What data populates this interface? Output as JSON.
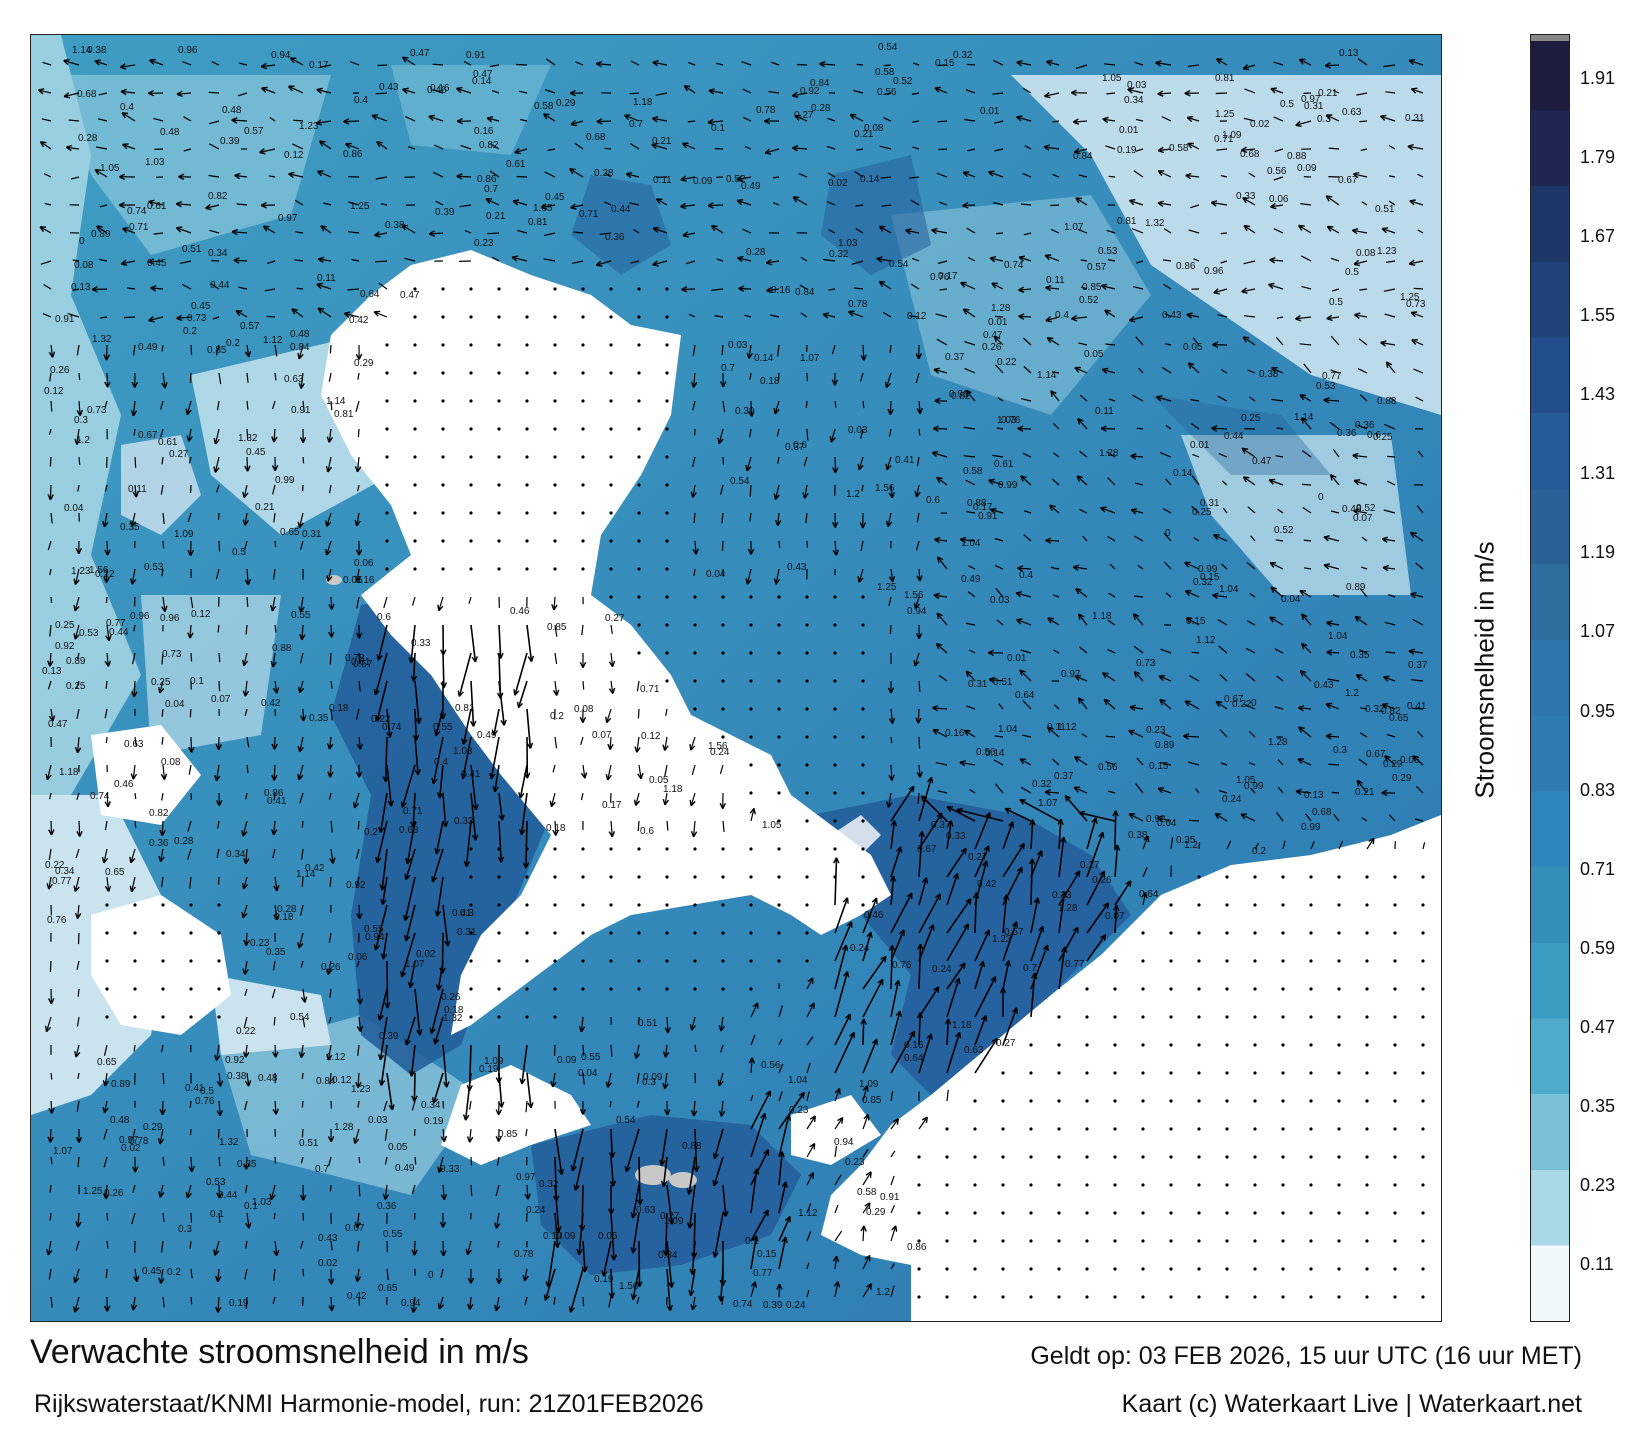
{
  "map": {
    "title": "Verwachte stroomsnelheid in m/s",
    "subtitle": "Rijkswaterstaat/KNMI Harmonie-model, run: 21Z01FEB2026",
    "valid_time": "Geldt op: 03 FEB 2026, 15 uur UTC (16 uur MET)",
    "credit": "Kaart (c) Waterkaart Live | Waterkaart.net",
    "colors": {
      "land": "#ffffff",
      "water_low": "#e6f4f8",
      "water_mid": "#3aa0c4",
      "water_high": "#1f5f9e",
      "island": "#c8c8c8",
      "arrow": "#000000"
    }
  },
  "colorbar": {
    "label": "Stroomsnelheid in m/s",
    "ticks": [
      "1.91",
      "1.79",
      "1.67",
      "1.55",
      "1.43",
      "1.31",
      "1.19",
      "1.07",
      "0.95",
      "0.83",
      "0.71",
      "0.59",
      "0.47",
      "0.35",
      "0.23",
      "0.11"
    ],
    "colors": [
      "#1c1d3e",
      "#1e2751",
      "#1d3766",
      "#1f447a",
      "#224f8c",
      "#255b98",
      "#2b6196",
      "#2d6e9f",
      "#2f75ad",
      "#2d7cb3",
      "#2f86bd",
      "#348fb9",
      "#3a9cc1",
      "#4fabcb",
      "#79c1d9",
      "#a9d9e6",
      "#f2f9fb"
    ]
  },
  "labels": {
    "values": [
      "0.27",
      "0.21",
      "0.16",
      "0.24",
      "0.19",
      "0.11",
      "0.12",
      "0.2",
      "0.26",
      "0.3",
      "0.22",
      "0.31",
      "0.29",
      "0.35",
      "0.32",
      "0.41",
      "0.47",
      "0.28",
      "0.34",
      "0.25",
      "0.18",
      "0.39",
      "0.54",
      "0.46",
      "0.36",
      "0.42",
      "0.33",
      "0.45",
      "0.48",
      "0.37",
      "0.17",
      "0.13",
      "0.15",
      "0.14",
      "0.23",
      "0.1",
      "0.09",
      "0.07",
      "0.08",
      "0.06",
      "0.05",
      "0.04",
      "0.03",
      "0.02",
      "0.01",
      "0.4",
      "0.43",
      "0.38",
      "0.44",
      "0.5",
      "0.53",
      "0.56",
      "0.52",
      "0.49",
      "0.51",
      "0.55",
      "0.58",
      "0.57",
      "0.61",
      "0.64",
      "0.67",
      "0.73",
      "0.74",
      "0.78",
      "0.82",
      "0.84",
      "0.88",
      "0.91",
      "0.94",
      "0.96",
      "0.99",
      "1.04",
      "1.07",
      "1.12",
      "1.14",
      "1.2",
      "1.25",
      "1.28",
      "1.32",
      "1.56",
      "0.65",
      "0.68",
      "0.7",
      "0.77",
      "0.81",
      "0.86",
      "0.92",
      "0.97",
      "0",
      "0.6",
      "0.63",
      "0.71",
      "0.76",
      "0.85",
      "0.89",
      "1.03",
      "1.05",
      "1.09",
      "1.18",
      "1.23"
    ]
  }
}
